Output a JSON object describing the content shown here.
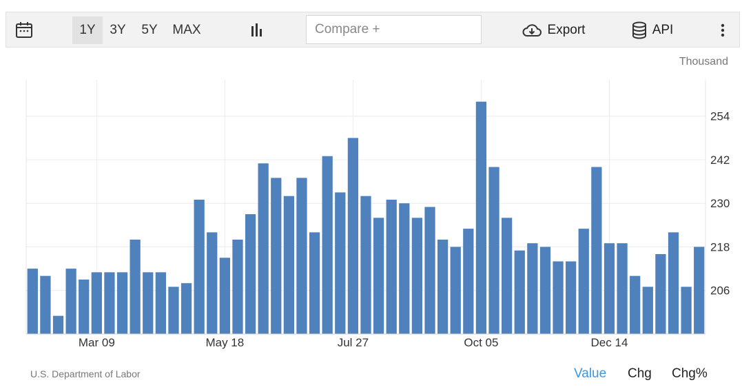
{
  "toolbar": {
    "calendar_icon": "calendar-icon",
    "ranges": [
      "1Y",
      "3Y",
      "5Y",
      "MAX"
    ],
    "active_range": "1Y",
    "chart_type_icon": "bar-chart-icon",
    "compare_placeholder": "Compare +",
    "export_label": "Export",
    "api_label": "API",
    "more_icon": "vertical-dots-icon"
  },
  "unit_label": "Thousand",
  "source": "U.S. Department of Labor",
  "view_tabs": [
    "Value",
    "Chg",
    "Chg%"
  ],
  "active_view": "Value",
  "colors": {
    "bar": "#4f81bd",
    "accent": "#3a97dd"
  },
  "chart_data": {
    "type": "bar",
    "x_tick_labels": [
      "Mar 09",
      "May 18",
      "Jul 27",
      "Oct 05",
      "Dec 14"
    ],
    "y_ticks": [
      206,
      218,
      230,
      242,
      254
    ],
    "ylim": [
      194,
      264
    ],
    "grid": true,
    "values": [
      212,
      210,
      199,
      212,
      209,
      211,
      211,
      211,
      220,
      211,
      211,
      207,
      208,
      231,
      222,
      215,
      220,
      227,
      241,
      237,
      232,
      237,
      222,
      243,
      233,
      248,
      232,
      226,
      231,
      230,
      226,
      229,
      220,
      218,
      223,
      258,
      240,
      226,
      217,
      219,
      218,
      214,
      214,
      223,
      240,
      219,
      219,
      210,
      207,
      216,
      222,
      207,
      218
    ]
  }
}
